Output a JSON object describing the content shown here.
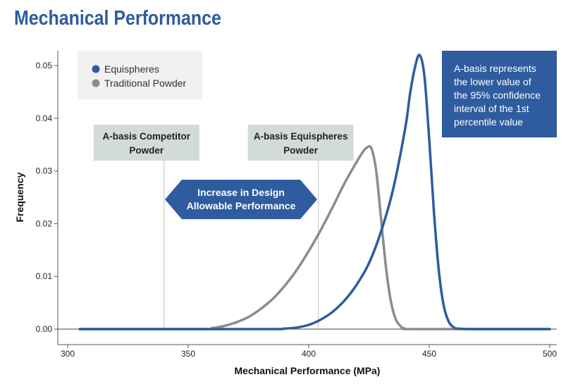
{
  "title": "Mechanical Performance",
  "chart_data": {
    "type": "line",
    "xlabel": "Mechanical Performance (MPa)",
    "ylabel": "Frequency",
    "xlim": [
      300,
      500
    ],
    "ylim": [
      0,
      0.052
    ],
    "xticks": [
      "300",
      "350",
      "400",
      "450",
      "500"
    ],
    "yticks": [
      "0.00",
      "0.01",
      "0.02",
      "0.03",
      "0.04",
      "0.05"
    ],
    "legend_position": "top-left",
    "series": [
      {
        "name": "Equispheres",
        "color": "#2e5c9e",
        "x": [
          305,
          380,
          390,
          395,
          400,
          405,
          410,
          415,
          420,
          425,
          430,
          435,
          440,
          442,
          444,
          446,
          448,
          450,
          452,
          454,
          456,
          458,
          460,
          462,
          470,
          500
        ],
        "y": [
          0,
          0,
          0.0001,
          0.0003,
          0.0008,
          0.0018,
          0.0033,
          0.0055,
          0.0085,
          0.0125,
          0.0185,
          0.0265,
          0.038,
          0.0445,
          0.0495,
          0.052,
          0.048,
          0.036,
          0.022,
          0.011,
          0.0045,
          0.0015,
          0.0004,
          0.0001,
          0,
          0
        ]
      },
      {
        "name": "Traditional Powder",
        "color": "#8c8c8c",
        "x": [
          305,
          355,
          360,
          365,
          370,
          375,
          380,
          385,
          390,
          395,
          400,
          405,
          410,
          415,
          420,
          422,
          424,
          426,
          428,
          430,
          432,
          434,
          436,
          438,
          440,
          445,
          500
        ],
        "y": [
          0,
          0,
          0.0002,
          0.0006,
          0.0013,
          0.0023,
          0.0038,
          0.0057,
          0.0082,
          0.0112,
          0.0148,
          0.0188,
          0.0232,
          0.0278,
          0.0318,
          0.0333,
          0.0344,
          0.0343,
          0.03,
          0.021,
          0.012,
          0.0055,
          0.002,
          0.0006,
          0.0001,
          0,
          0
        ]
      }
    ],
    "reference_lines": [
      {
        "label": "A-basis Competitor Powder",
        "label_line1": "A-basis Competitor",
        "label_line2": "Powder",
        "x": 340
      },
      {
        "label": "A-basis Equispheres Powder",
        "label_line1": "A-basis Equispheres",
        "label_line2": "Powder",
        "x": 404
      }
    ],
    "annotations": {
      "arrow_line1": "Increase in Design",
      "arrow_line2": "Allowable Performance",
      "note_lines": [
        "A-basis represents",
        "the lower value of",
        "the 95% confidence",
        "interval of the 1st",
        "percentile value"
      ]
    }
  },
  "colors": {
    "title": "#2e5c9e",
    "accent": "#2e5c9e",
    "box_fill": "#d3dbd7",
    "legend_fill": "#f1f1f1",
    "reference_line": "#bfbfbf"
  }
}
